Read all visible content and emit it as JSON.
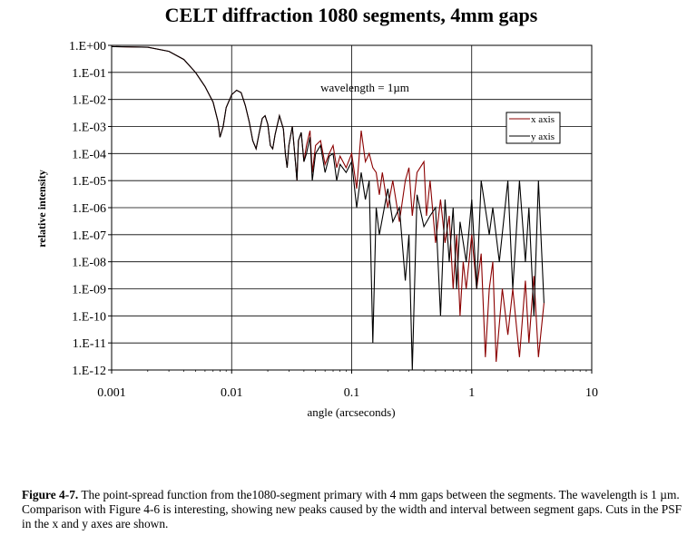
{
  "chart_data": {
    "type": "line",
    "title": "CELT diffraction 1080 segments, 4mm gaps",
    "xlabel": "angle (arcseconds)",
    "ylabel": "relative intensity",
    "annotation": "wavelength = 1µm",
    "x_scale": "log",
    "y_scale": "log",
    "xlim": [
      0.001,
      10
    ],
    "ylim": [
      1e-12,
      1
    ],
    "x_ticks": [
      "0.001",
      "0.01",
      "0.1",
      "1",
      "10"
    ],
    "y_ticks": [
      "1.E+00",
      "1.E-01",
      "1.E-02",
      "1.E-03",
      "1.E-04",
      "1.E-05",
      "1.E-06",
      "1.E-07",
      "1.E-08",
      "1.E-09",
      "1.E-10",
      "1.E-11",
      "1.E-12"
    ],
    "grid": "horizontal and vertical at decades",
    "legend_position": "right",
    "series": [
      {
        "name": "x axis",
        "color": "#8b0000",
        "points": [
          [
            0.001,
            0.9
          ],
          [
            0.002,
            0.85
          ],
          [
            0.003,
            0.6
          ],
          [
            0.004,
            0.3
          ],
          [
            0.005,
            0.1
          ],
          [
            0.006,
            0.03
          ],
          [
            0.007,
            0.008
          ],
          [
            0.0077,
            0.0015
          ],
          [
            0.008,
            0.0004
          ],
          [
            0.0085,
            0.001
          ],
          [
            0.009,
            0.005
          ],
          [
            0.01,
            0.015
          ],
          [
            0.011,
            0.022
          ],
          [
            0.012,
            0.018
          ],
          [
            0.013,
            0.006
          ],
          [
            0.014,
            0.0015
          ],
          [
            0.015,
            0.0003
          ],
          [
            0.016,
            0.00015
          ],
          [
            0.017,
            0.0006
          ],
          [
            0.018,
            0.002
          ],
          [
            0.019,
            0.0025
          ],
          [
            0.02,
            0.0012
          ],
          [
            0.021,
            0.0002
          ],
          [
            0.022,
            0.00015
          ],
          [
            0.023,
            0.0005
          ],
          [
            0.025,
            0.0025
          ],
          [
            0.027,
            0.0008
          ],
          [
            0.028,
            0.0001
          ],
          [
            0.029,
            3e-05
          ],
          [
            0.03,
            0.0002
          ],
          [
            0.032,
            0.001
          ],
          [
            0.034,
            5e-05
          ],
          [
            0.035,
            1e-05
          ],
          [
            0.036,
            0.0003
          ],
          [
            0.038,
            0.0006
          ],
          [
            0.04,
            5e-05
          ],
          [
            0.042,
            0.0002
          ],
          [
            0.045,
            0.0007
          ],
          [
            0.047,
            2e-05
          ],
          [
            0.05,
            0.0002
          ],
          [
            0.055,
            0.0003
          ],
          [
            0.06,
            4e-05
          ],
          [
            0.065,
            0.0001
          ],
          [
            0.07,
            0.0002
          ],
          [
            0.075,
            3e-05
          ],
          [
            0.08,
            8e-05
          ],
          [
            0.09,
            3e-05
          ],
          [
            0.1,
            0.0001
          ],
          [
            0.11,
            5e-06
          ],
          [
            0.12,
            0.0007
          ],
          [
            0.13,
            5e-05
          ],
          [
            0.14,
            0.0001
          ],
          [
            0.15,
            3e-05
          ],
          [
            0.16,
            2e-05
          ],
          [
            0.17,
            3e-06
          ],
          [
            0.18,
            2e-05
          ],
          [
            0.2,
            1e-06
          ],
          [
            0.22,
            1e-05
          ],
          [
            0.25,
            3e-07
          ],
          [
            0.28,
            1e-05
          ],
          [
            0.3,
            3e-05
          ],
          [
            0.32,
            5e-07
          ],
          [
            0.35,
            2e-05
          ],
          [
            0.4,
            5e-05
          ],
          [
            0.42,
            5e-07
          ],
          [
            0.45,
            1e-05
          ],
          [
            0.5,
            5e-08
          ],
          [
            0.55,
            2e-06
          ],
          [
            0.6,
            5e-08
          ],
          [
            0.65,
            5e-07
          ],
          [
            0.7,
            1e-09
          ],
          [
            0.75,
            1e-07
          ],
          [
            0.8,
            1e-10
          ],
          [
            0.85,
            1e-08
          ],
          [
            0.9,
            1e-09
          ],
          [
            1.0,
            1e-07
          ],
          [
            1.1,
            1e-09
          ],
          [
            1.2,
            2e-08
          ],
          [
            1.3,
            3e-12
          ],
          [
            1.4,
            1e-09
          ],
          [
            1.5,
            1e-08
          ],
          [
            1.6,
            2e-12
          ],
          [
            1.8,
            1e-09
          ],
          [
            2.0,
            2e-11
          ],
          [
            2.2,
            1e-09
          ],
          [
            2.5,
            3e-12
          ],
          [
            2.8,
            2e-09
          ],
          [
            3.0,
            1e-11
          ],
          [
            3.3,
            3e-09
          ],
          [
            3.6,
            3e-12
          ],
          [
            4.0,
            3e-10
          ]
        ]
      },
      {
        "name": "y axis",
        "color": "#000000",
        "points": [
          [
            0.001,
            0.9
          ],
          [
            0.002,
            0.85
          ],
          [
            0.003,
            0.6
          ],
          [
            0.004,
            0.3
          ],
          [
            0.005,
            0.1
          ],
          [
            0.006,
            0.03
          ],
          [
            0.007,
            0.008
          ],
          [
            0.0077,
            0.0015
          ],
          [
            0.008,
            0.0004
          ],
          [
            0.0085,
            0.001
          ],
          [
            0.009,
            0.005
          ],
          [
            0.01,
            0.015
          ],
          [
            0.011,
            0.022
          ],
          [
            0.012,
            0.018
          ],
          [
            0.013,
            0.006
          ],
          [
            0.014,
            0.0015
          ],
          [
            0.015,
            0.0003
          ],
          [
            0.016,
            0.00015
          ],
          [
            0.017,
            0.0006
          ],
          [
            0.018,
            0.002
          ],
          [
            0.019,
            0.0025
          ],
          [
            0.02,
            0.0012
          ],
          [
            0.021,
            0.0002
          ],
          [
            0.022,
            0.00015
          ],
          [
            0.023,
            0.0005
          ],
          [
            0.025,
            0.0025
          ],
          [
            0.027,
            0.0008
          ],
          [
            0.028,
            0.0001
          ],
          [
            0.029,
            3e-05
          ],
          [
            0.03,
            0.0002
          ],
          [
            0.032,
            0.001
          ],
          [
            0.034,
            5e-05
          ],
          [
            0.035,
            1e-05
          ],
          [
            0.036,
            0.0003
          ],
          [
            0.038,
            0.0006
          ],
          [
            0.04,
            5e-05
          ],
          [
            0.042,
            0.0001
          ],
          [
            0.045,
            0.0004
          ],
          [
            0.047,
            1e-05
          ],
          [
            0.05,
            0.0001
          ],
          [
            0.055,
            0.0002
          ],
          [
            0.06,
            2e-05
          ],
          [
            0.065,
            8e-05
          ],
          [
            0.07,
            0.0001
          ],
          [
            0.075,
            1e-05
          ],
          [
            0.08,
            4e-05
          ],
          [
            0.09,
            2e-05
          ],
          [
            0.1,
            5e-05
          ],
          [
            0.11,
            1e-06
          ],
          [
            0.12,
            2e-05
          ],
          [
            0.13,
            2e-06
          ],
          [
            0.14,
            1e-05
          ],
          [
            0.15,
            1e-11
          ],
          [
            0.16,
            1e-06
          ],
          [
            0.17,
            1e-07
          ],
          [
            0.2,
            5e-06
          ],
          [
            0.22,
            3e-07
          ],
          [
            0.25,
            1e-06
          ],
          [
            0.28,
            2e-09
          ],
          [
            0.3,
            1e-07
          ],
          [
            0.32,
            1e-12
          ],
          [
            0.35,
            3e-06
          ],
          [
            0.4,
            2e-07
          ],
          [
            0.45,
            5e-07
          ],
          [
            0.5,
            1e-06
          ],
          [
            0.55,
            1e-10
          ],
          [
            0.6,
            2e-06
          ],
          [
            0.65,
            1e-08
          ],
          [
            0.7,
            1e-06
          ],
          [
            0.75,
            1e-09
          ],
          [
            0.8,
            3e-07
          ],
          [
            0.9,
            1e-08
          ],
          [
            1.0,
            2e-06
          ],
          [
            1.1,
            1e-09
          ],
          [
            1.2,
            1e-05
          ],
          [
            1.4,
            1e-07
          ],
          [
            1.5,
            1e-06
          ],
          [
            1.7,
            1e-08
          ],
          [
            2.0,
            1e-05
          ],
          [
            2.2,
            1e-09
          ],
          [
            2.5,
            1e-05
          ],
          [
            2.8,
            1e-08
          ],
          [
            3.0,
            1e-06
          ],
          [
            3.3,
            1e-10
          ],
          [
            3.6,
            1e-05
          ],
          [
            4.0,
            3e-10
          ]
        ]
      }
    ]
  },
  "caption": {
    "label": "Figure 4-7.",
    "text": "The point-spread function from the1080-segment primary with 4 mm gaps between the segments. The wavelength is 1 µm.  Comparison with Figure 4-6 is interesting, showing new peaks caused by the width and interval between segment gaps.  Cuts in the PSF in the x and y axes are shown."
  }
}
